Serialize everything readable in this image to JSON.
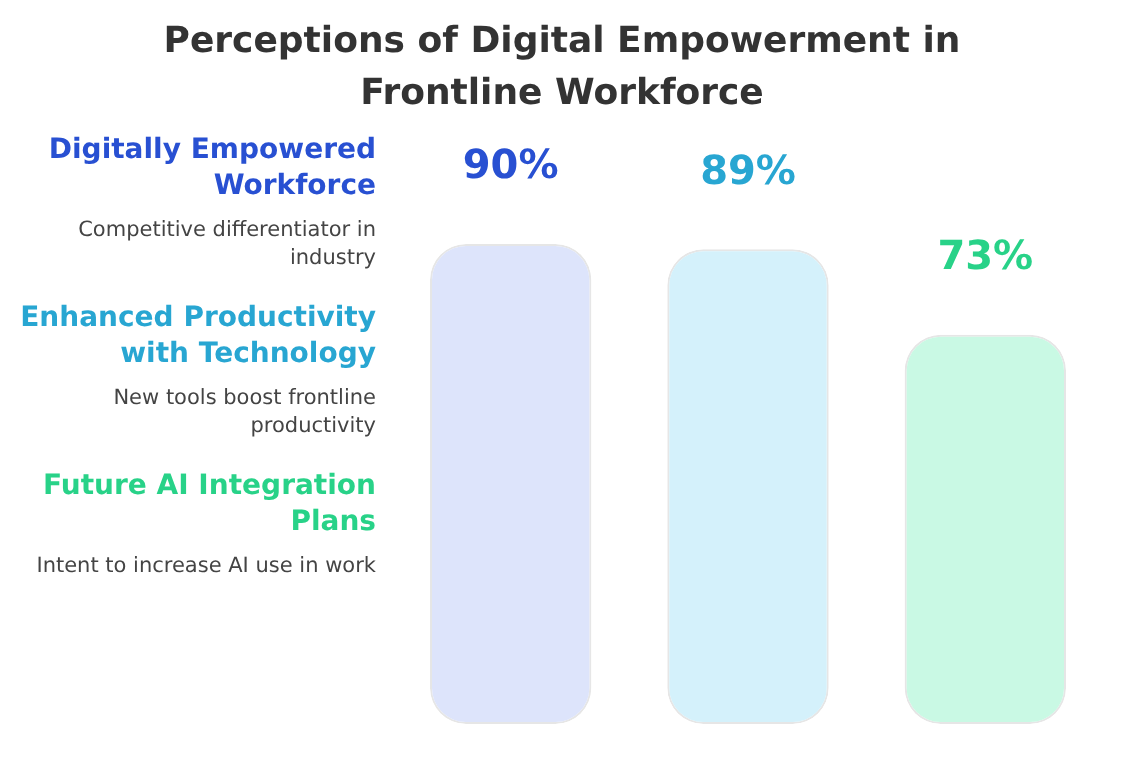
{
  "chart_data": {
    "type": "bar",
    "title": "Perceptions of Digital Empowerment in Frontline Workforce",
    "categories": [
      null,
      null,
      null
    ],
    "values": [
      90,
      89,
      73
    ],
    "colors": [
      "#dde4fb",
      "#d4f1fb",
      "#c9f9e4"
    ],
    "value_labels": [
      "90%",
      "89%",
      "73%"
    ],
    "annotations": [
      "Digitally Empowered Workforce",
      "Competitive differentiator in industry",
      "Enhanced Productivity with Technology",
      "New tools boost frontline productivity",
      "Future AI Integration Plans",
      "Intent to increase AI use in work"
    ],
    "tick_labels": false
  }
}
